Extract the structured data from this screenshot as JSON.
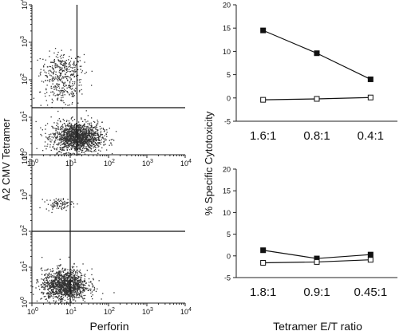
{
  "flow_y_axis_label": "A2 CMV Tetramer",
  "flow_x_axis_label": "Perforin",
  "cyto_y_axis_label": "% Specific Cytotoxicity",
  "cyto_x_axis_label": "Tetramer E/T ratio",
  "chart_data": [
    {
      "type": "scatter",
      "xscale": "log",
      "yscale": "log",
      "xlim": [
        1,
        10000
      ],
      "ylim": [
        1,
        10000
      ],
      "xticks": [
        "10^0",
        "10^1",
        "10^2",
        "10^3",
        "10^4"
      ],
      "yticks": [
        "10^0",
        "10^1",
        "10^2",
        "10^3",
        "10^4"
      ],
      "gate": {
        "x": 15,
        "y": 18
      },
      "populations": [
        {
          "cx": 6,
          "cy": 200,
          "sx": 0.28,
          "sy": 0.22,
          "count": 260
        },
        {
          "cx": 6,
          "cy": 50,
          "sx": 0.28,
          "sy": 0.2,
          "count": 160
        },
        {
          "cx": 15,
          "cy": 3,
          "sx": 0.32,
          "sy": 0.2,
          "count": 1500
        }
      ]
    },
    {
      "type": "scatter",
      "xscale": "log",
      "yscale": "log",
      "xlim": [
        1,
        10000
      ],
      "ylim": [
        1,
        10000
      ],
      "xticks": [
        "10^0",
        "10^1",
        "10^2",
        "10^3",
        "10^4"
      ],
      "yticks": [
        "10^0",
        "10^1",
        "10^2",
        "10^3",
        "10^4"
      ],
      "gate": {
        "x": 10,
        "y": 100
      },
      "populations": [
        {
          "cx": 5,
          "cy": 600,
          "sx": 0.18,
          "sy": 0.08,
          "count": 90
        },
        {
          "cx": 7,
          "cy": 3.2,
          "sx": 0.3,
          "sy": 0.22,
          "count": 1300
        }
      ]
    },
    {
      "type": "line",
      "categories": [
        "1.6:1",
        "0.8:1",
        "0.4:1"
      ],
      "ylim": [
        -5,
        20
      ],
      "yticks": [
        -5,
        0,
        5,
        10,
        15,
        20
      ],
      "series": [
        {
          "marker": "filled-square",
          "values": [
            14.5,
            9.6,
            4.0
          ]
        },
        {
          "marker": "open-square",
          "values": [
            -0.4,
            -0.2,
            0.1
          ]
        }
      ]
    },
    {
      "type": "line",
      "categories": [
        "1.8:1",
        "0.9:1",
        "0.45:1"
      ],
      "ylim": [
        -5,
        20
      ],
      "yticks": [
        -5,
        0,
        5,
        10,
        15,
        20
      ],
      "series": [
        {
          "marker": "filled-square",
          "values": [
            1.3,
            -0.6,
            0.3
          ]
        },
        {
          "marker": "open-square",
          "values": [
            -1.6,
            -1.4,
            -0.9
          ]
        }
      ]
    }
  ]
}
